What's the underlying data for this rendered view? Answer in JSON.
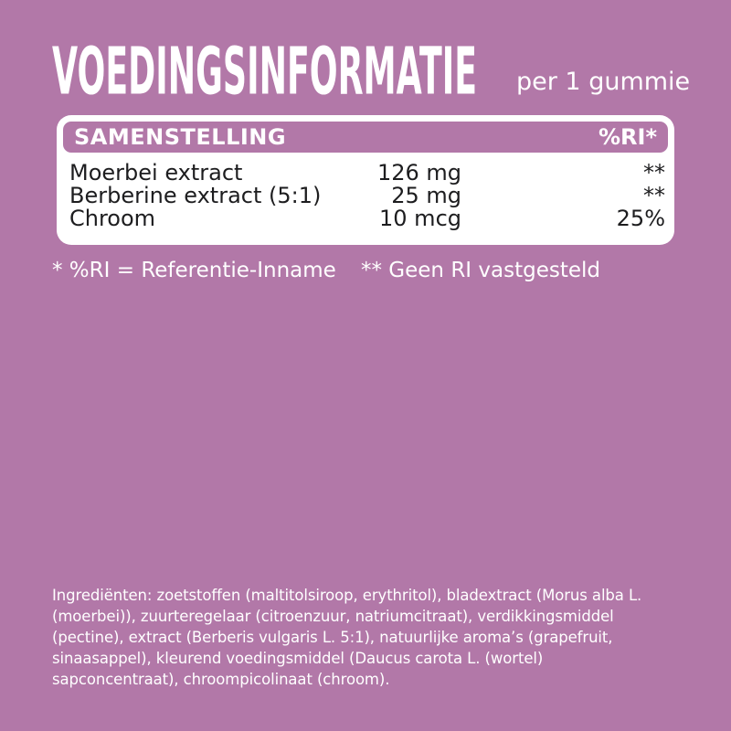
{
  "colors": {
    "background": "#b278a8",
    "band": "#b278a8",
    "card": "#ffffff",
    "text_dark": "#1d1d1f",
    "text_light": "#ffffff"
  },
  "header": {
    "title": "VOEDINGSINFORMATIE",
    "serving": "per 1 gummie"
  },
  "table": {
    "header": {
      "composition_label": "SAMENSTELLING",
      "ri_label": "%RI*"
    },
    "rows": [
      {
        "name": "Moerbei extract",
        "amount": "126 mg",
        "ri": "**"
      },
      {
        "name": "Berberine extract (5:1)",
        "amount": "25 mg",
        "ri": "**"
      },
      {
        "name": "Chroom",
        "amount": "10 mcg",
        "ri": "25%"
      }
    ]
  },
  "footnotes": {
    "ri_definition": "* %RI = Referentie-Inname",
    "no_ri": "** Geen RI vastgesteld"
  },
  "ingredients": {
    "lines": [
      "Ingrediënten: zoetstoffen (maltitolsiroop, erythritol), bladextract (Morus alba L.",
      "(moerbei)), zuurteregelaar (citroenzuur, natriumcitraat), verdikkingsmiddel",
      "(pectine), extract (Berberis vulgaris L. 5:1), natuurlijke aroma’s (grapefruit,",
      "sinaasappel), kleurend voedingsmiddel (Daucus carota L. (wortel)",
      "sapconcentraat), chroompicolinaat (chroom)."
    ]
  }
}
